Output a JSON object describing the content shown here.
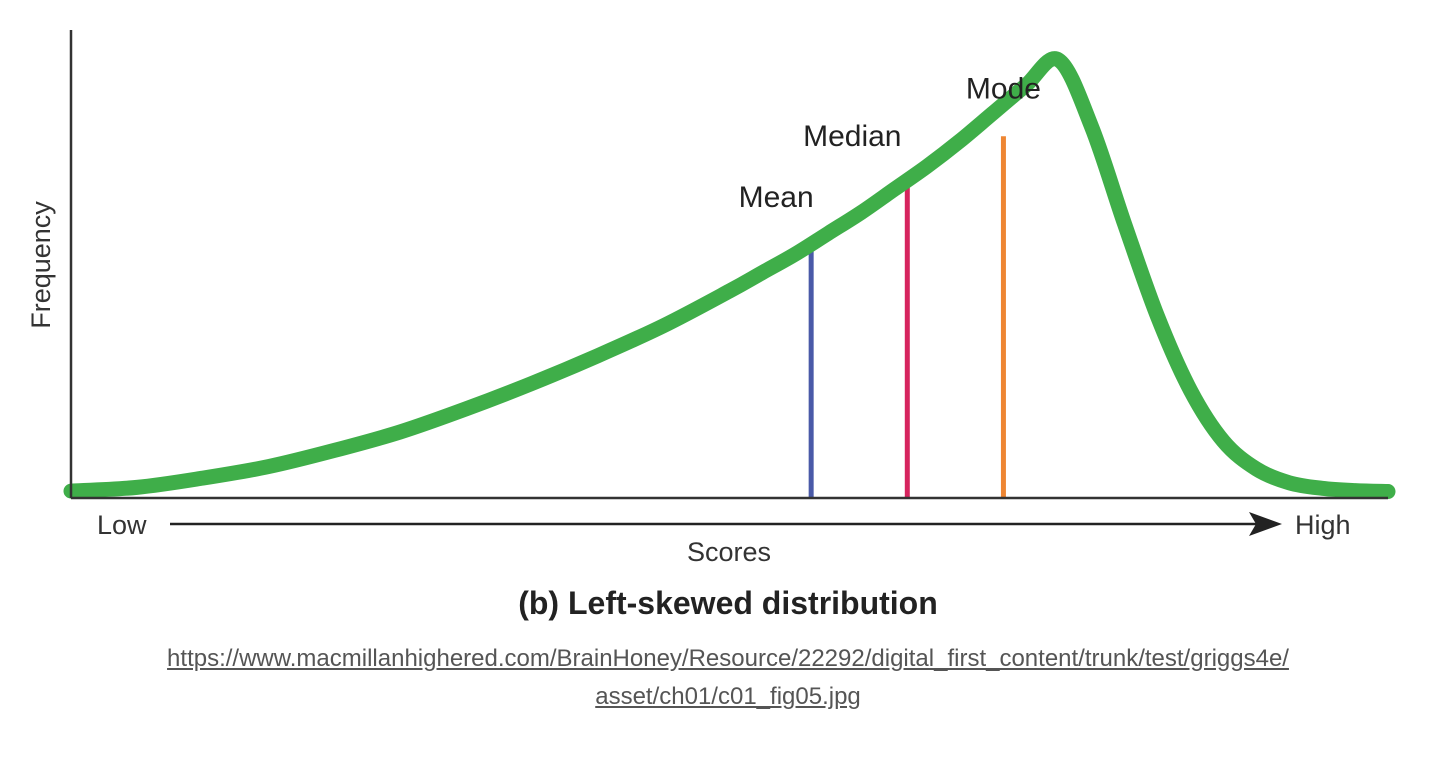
{
  "chart_data": {
    "type": "line",
    "title": "(b) Left-skewed distribution",
    "xlabel": "Scores",
    "ylabel": "Frequency",
    "x_tick_labels": {
      "low": "Low",
      "high": "High"
    },
    "x_scale": "ordinal (Low to High), no numeric ticks",
    "y_scale": "no numeric ticks",
    "series": [
      {
        "color": "#3fae49",
        "x": [
          0,
          5,
          10,
          15,
          20,
          25,
          30,
          35,
          40,
          45,
          50,
          52.5,
          55,
          57.5,
          60,
          62.5,
          65,
          67.5,
          70,
          72.5,
          75,
          77.5,
          80,
          82.5,
          85,
          87.5,
          90,
          92.5,
          95,
          97.5,
          100
        ],
        "y": [
          0.2,
          1,
          3,
          5.5,
          9,
          13,
          18,
          23.5,
          29.5,
          36,
          43.5,
          47.5,
          51.5,
          56,
          60.5,
          65.5,
          70.5,
          76,
          82,
          88,
          93.5,
          79,
          58,
          38,
          22,
          11,
          5,
          2,
          0.8,
          0.3,
          0.1
        ]
      }
    ],
    "markers": [
      {
        "label": "Mean",
        "x": 56.2,
        "y": 53.5,
        "color": "#4a5aa8"
      },
      {
        "label": "Median",
        "x": 63.5,
        "y": 66.7,
        "color": "#d6245e"
      },
      {
        "label": "Mode",
        "x": 70.8,
        "y": 77.0,
        "color": "#ee8633"
      }
    ],
    "grid": false,
    "legend": "none"
  },
  "caption": {
    "line1": "https://www.macmillanhighered.com/BrainHoney/Resource/22292/digital_first_content/trunk/test/griggs4e/",
    "line2": "asset/ch01/c01_fig05.jpg"
  }
}
